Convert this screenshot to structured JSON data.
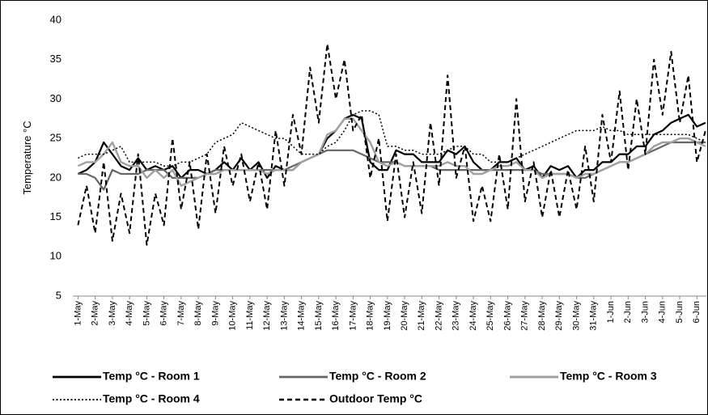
{
  "chart_data": {
    "type": "line",
    "y_label": "Temperature °C",
    "ylim": [
      5,
      40
    ],
    "yticks": [
      5,
      10,
      15,
      20,
      25,
      30,
      35,
      40
    ],
    "xlim": [
      -0.3,
      36.55
    ],
    "xticks": [
      {
        "value": 0,
        "label": "1-May"
      },
      {
        "value": 1,
        "label": "2-May"
      },
      {
        "value": 2,
        "label": "3-May"
      },
      {
        "value": 3,
        "label": "4-May"
      },
      {
        "value": 4,
        "label": "5-May"
      },
      {
        "value": 5,
        "label": "6-May"
      },
      {
        "value": 6,
        "label": "7-May"
      },
      {
        "value": 7,
        "label": "8-May"
      },
      {
        "value": 8,
        "label": "9-May"
      },
      {
        "value": 9,
        "label": "10-May"
      },
      {
        "value": 10,
        "label": "11-May"
      },
      {
        "value": 11,
        "label": "12-May"
      },
      {
        "value": 12,
        "label": "13-May"
      },
      {
        "value": 13,
        "label": "14-May"
      },
      {
        "value": 14,
        "label": "15-May"
      },
      {
        "value": 15,
        "label": "16-May"
      },
      {
        "value": 16,
        "label": "17-May"
      },
      {
        "value": 17,
        "label": "18-May"
      },
      {
        "value": 18,
        "label": "19-May"
      },
      {
        "value": 19,
        "label": "20-May"
      },
      {
        "value": 20,
        "label": "21-May"
      },
      {
        "value": 21,
        "label": "22-May"
      },
      {
        "value": 22,
        "label": "23-May"
      },
      {
        "value": 23,
        "label": "24-May"
      },
      {
        "value": 24,
        "label": "25-May"
      },
      {
        "value": 25,
        "label": "26-May"
      },
      {
        "value": 26,
        "label": "27-May"
      },
      {
        "value": 27,
        "label": "28-May"
      },
      {
        "value": 28,
        "label": "29-May"
      },
      {
        "value": 29,
        "label": "30-May"
      },
      {
        "value": 30,
        "label": "31-May"
      },
      {
        "value": 31,
        "label": "1-Jun"
      },
      {
        "value": 32,
        "label": "2-Jun"
      },
      {
        "value": 33,
        "label": "3-Jun"
      },
      {
        "value": 34,
        "label": "4-Jun"
      },
      {
        "value": 35,
        "label": "5-Jun"
      },
      {
        "value": 36,
        "label": "6-Jun"
      }
    ],
    "x": [
      0,
      0.5,
      1,
      1.5,
      2,
      2.5,
      3,
      3.5,
      4,
      4.5,
      5,
      5.5,
      6,
      6.5,
      7,
      7.5,
      8,
      8.5,
      9,
      9.5,
      10,
      10.5,
      11,
      11.5,
      12,
      12.5,
      13,
      13.5,
      14,
      14.5,
      15,
      15.5,
      16,
      16.5,
      17,
      17.5,
      18,
      18.5,
      19,
      19.5,
      20,
      20.5,
      21,
      21.5,
      22,
      22.5,
      23,
      23.5,
      24,
      24.5,
      25,
      25.5,
      26,
      26.5,
      27,
      27.5,
      28,
      28.5,
      29,
      29.5,
      30,
      30.5,
      31,
      31.5,
      32,
      32.5,
      33,
      33.5,
      34,
      34.5,
      35,
      35.5,
      36,
      36.5
    ],
    "series": [
      {
        "name": "Temp °C - Room 1",
        "color": "#000000",
        "dash": "solid",
        "width": 2.2,
        "values": [
          20.5,
          21,
          22,
          24.5,
          23,
          21.5,
          21,
          22.5,
          21,
          21.5,
          21,
          21.5,
          20,
          21,
          21,
          20.5,
          21,
          22,
          21,
          22.5,
          21,
          22,
          20,
          21.5,
          21,
          21,
          22,
          22.5,
          23,
          25,
          26,
          27.5,
          28,
          27.5,
          22,
          21,
          21,
          23.5,
          23,
          23,
          22,
          22,
          22,
          23.5,
          23,
          24,
          22,
          21,
          21,
          22,
          22,
          22.5,
          21,
          21.5,
          20,
          21.5,
          21,
          21.5,
          20,
          21,
          21,
          22,
          22,
          23,
          23,
          24,
          24,
          25.5,
          26,
          27,
          27.5,
          28,
          26.5,
          27
        ]
      },
      {
        "name": "Temp °C - Room 2",
        "color": "#666666",
        "dash": "solid",
        "width": 2.2,
        "values": [
          20.5,
          20.5,
          20,
          18.5,
          21,
          20.5,
          20.5,
          20.5,
          21,
          21,
          21,
          20,
          20,
          20,
          20,
          20.5,
          21,
          21,
          21,
          21,
          21,
          21,
          21,
          21,
          21,
          21.5,
          22,
          22.5,
          23,
          23.5,
          23.5,
          23.5,
          23.5,
          23,
          22.5,
          22,
          22,
          22,
          21.5,
          21.5,
          21.5,
          21.5,
          21,
          21,
          21,
          21,
          21,
          21,
          21,
          21,
          21,
          21,
          21,
          21,
          20.5,
          20.5,
          20.5,
          20.5,
          20,
          20,
          20.5,
          21,
          21.5,
          22,
          22,
          22.5,
          23,
          23.5,
          24,
          24.5,
          24.5,
          24.5,
          24.5,
          24.5
        ]
      },
      {
        "name": "Temp °C - Room 3",
        "color": "#a0a0a0",
        "dash": "solid",
        "width": 2.4,
        "values": [
          21.5,
          22,
          22,
          23,
          24.5,
          22,
          21.5,
          21.5,
          20,
          21,
          20,
          21,
          19,
          19.5,
          20,
          20.5,
          20.5,
          21,
          21,
          21,
          21,
          21,
          20.5,
          21,
          21,
          21,
          22,
          22.5,
          23,
          25.5,
          26,
          27.5,
          27.5,
          26,
          24.5,
          22,
          21.5,
          22,
          21.5,
          21.5,
          21.5,
          21.5,
          21.5,
          22,
          21.5,
          21.5,
          20.5,
          20.5,
          21,
          21.5,
          21.5,
          22,
          21,
          21,
          20,
          20.5,
          20.5,
          20.5,
          20,
          20.5,
          20.5,
          21,
          21.5,
          22,
          22,
          22.5,
          23,
          24,
          24.5,
          24.5,
          25,
          25,
          24.5,
          24
        ]
      },
      {
        "name": "Temp °C - Room 4",
        "color": "#000000",
        "dash": "dotted",
        "width": 1.5,
        "values": [
          22.5,
          23,
          23,
          23,
          23.5,
          24,
          22,
          22,
          22,
          22,
          21.5,
          21.5,
          22,
          22,
          22.5,
          23,
          24.5,
          25,
          25.5,
          27,
          26.5,
          26,
          25.5,
          25,
          25,
          24,
          23,
          23,
          23,
          24,
          24.5,
          26,
          28,
          28.5,
          28.5,
          28,
          24,
          24,
          23.5,
          23.5,
          23,
          23,
          23,
          23.5,
          24,
          24,
          23,
          23,
          22,
          22,
          22,
          22.5,
          23,
          23.5,
          24,
          24.5,
          25,
          25.5,
          26,
          26,
          26,
          26.5,
          26,
          26,
          25.5,
          25.5,
          25.5,
          25.5,
          25.5,
          25.5,
          25.5,
          25.5,
          25,
          24.5
        ]
      },
      {
        "name": "Outdoor Temp °C",
        "color": "#000000",
        "dash": "dashed",
        "width": 2,
        "values": [
          14,
          19,
          13,
          22,
          12,
          18,
          13,
          23,
          11.5,
          18,
          14,
          25,
          16,
          22,
          13.5,
          23,
          15.5,
          24,
          19,
          23,
          17,
          22,
          16,
          26,
          19,
          28,
          23,
          34,
          27,
          37,
          30,
          35,
          26,
          28,
          20,
          25,
          14.5,
          23,
          15,
          22,
          15.5,
          27,
          19,
          33,
          20,
          24,
          14.5,
          19,
          14.5,
          23,
          16,
          30,
          17,
          22,
          15,
          21,
          15,
          21,
          16,
          24,
          17,
          28,
          22,
          31,
          21,
          30,
          23,
          35,
          28,
          36,
          27,
          33,
          22,
          26
        ]
      }
    ]
  }
}
